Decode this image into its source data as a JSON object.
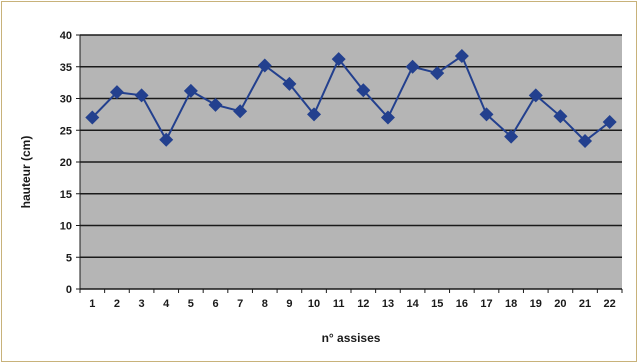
{
  "chart_data": {
    "type": "line",
    "title": "",
    "xlabel": "n° assises",
    "ylabel": "hauteur (cm)",
    "categories": [
      "1",
      "2",
      "3",
      "4",
      "5",
      "6",
      "7",
      "8",
      "9",
      "10",
      "11",
      "12",
      "13",
      "14",
      "15",
      "16",
      "17",
      "18",
      "19",
      "20",
      "21",
      "22"
    ],
    "series": [
      {
        "values": [
          27,
          31,
          30.5,
          23.5,
          31.2,
          29,
          28,
          35.2,
          32.3,
          27.5,
          36.2,
          31.3,
          27,
          35,
          34,
          36.7,
          27.5,
          24,
          30.5,
          27.2,
          23.3,
          26.3
        ]
      }
    ],
    "ylim": [
      0,
      40
    ],
    "yticks": [
      0,
      5,
      10,
      15,
      20,
      25,
      30,
      35,
      40
    ],
    "grid": true,
    "legend": "none",
    "colors": {
      "plot_background": "#b5b5b5",
      "gridline": "#1a1a1a",
      "series": "#23408e",
      "border": "#c8b27a"
    }
  }
}
